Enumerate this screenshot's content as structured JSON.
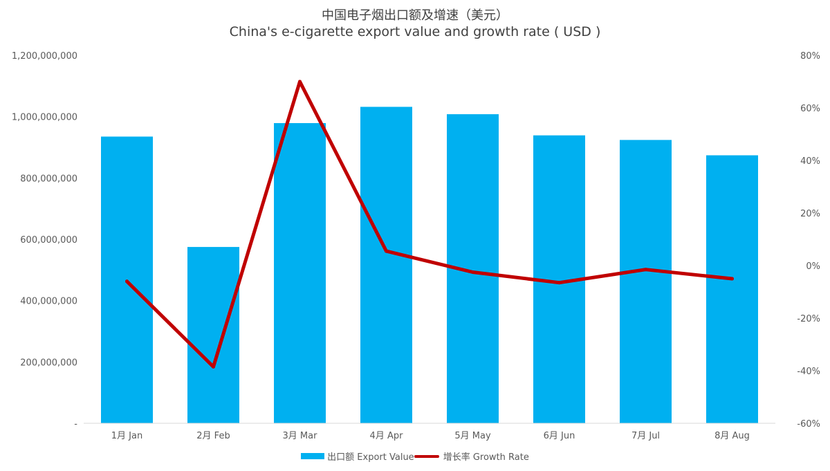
{
  "title_cn": "中国电子烟出口额及增速（美元）",
  "title_en": "China's e-cigarette export value and growth rate ( USD )",
  "colors": {
    "bar": "#00B0F0",
    "line": "#C00000",
    "axis": "#D9D9D9"
  },
  "chart_data": {
    "type": "bar",
    "categories": [
      "1月 Jan",
      "2月 Feb",
      "3月 Mar",
      "4月 Apr",
      "5月 May",
      "6月 Jun",
      "7月 Jul",
      "8月 Aug"
    ],
    "series": [
      {
        "name": "出口额 Export Value",
        "type": "bar",
        "axis": "left",
        "values": [
          935000000,
          575000000,
          979000000,
          1032000000,
          1008000000,
          939000000,
          924000000,
          874000000
        ]
      },
      {
        "name": "增长率 Growth Rate",
        "type": "line",
        "axis": "right",
        "values": [
          -6,
          -38.5,
          70,
          5.5,
          -2.5,
          -6.5,
          -1.5,
          -5
        ]
      }
    ],
    "y_left": {
      "min": 0,
      "max": 1200000000,
      "step": 200000000,
      "tick_labels": [
        "-",
        "200,000,000",
        "400,000,000",
        "600,000,000",
        "800,000,000",
        "1,000,000,000",
        "1,200,000,000"
      ]
    },
    "y_right": {
      "min": -60,
      "max": 80,
      "step": 20,
      "tick_labels": [
        "-60%",
        "-40%",
        "-20%",
        "0%",
        "20%",
        "40%",
        "60%",
        "80%"
      ]
    },
    "grid": false,
    "legend_position": "bottom"
  }
}
